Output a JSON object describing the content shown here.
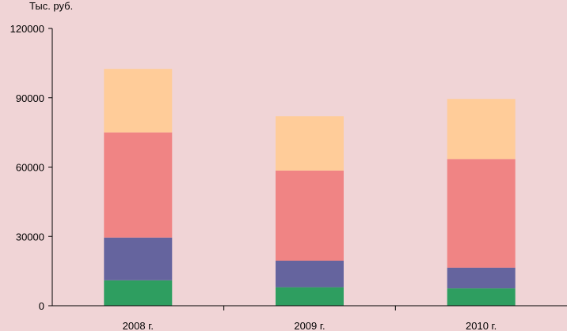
{
  "chart_data": {
    "type": "bar",
    "stacked": true,
    "unit_label": "Тыс. руб.",
    "categories": [
      "2008 г.",
      "2009 г.",
      "2010 г."
    ],
    "series": [
      {
        "color": "#2e9e60",
        "values": [
          11000,
          8000,
          7500
        ]
      },
      {
        "color": "#65649e",
        "values": [
          18500,
          11500,
          9000
        ]
      },
      {
        "color": "#f08484",
        "values": [
          45500,
          39000,
          47000
        ]
      },
      {
        "color": "#ffcc99",
        "values": [
          27500,
          23500,
          26000
        ]
      }
    ],
    "ylim": [
      0,
      120000
    ],
    "yticks": [
      0,
      30000,
      60000,
      90000,
      120000
    ],
    "ytick_labels": [
      "0",
      "30000",
      "60000",
      "90000",
      "120000"
    ],
    "grid": false,
    "legend": "none"
  }
}
